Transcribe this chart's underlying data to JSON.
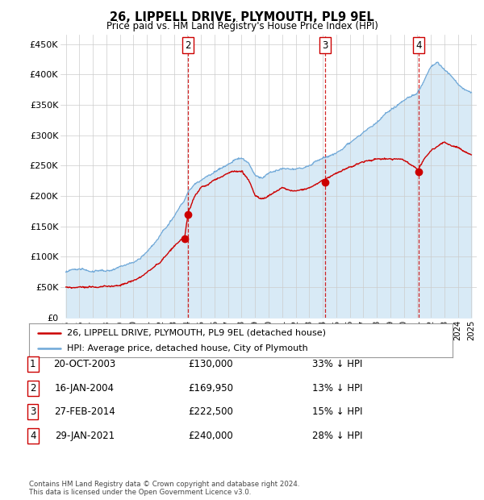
{
  "title": "26, LIPPELL DRIVE, PLYMOUTH, PL9 9EL",
  "subtitle": "Price paid vs. HM Land Registry's House Price Index (HPI)",
  "ylabel_ticks": [
    "£0",
    "£50K",
    "£100K",
    "£150K",
    "£200K",
    "£250K",
    "£300K",
    "£350K",
    "£400K",
    "£450K"
  ],
  "ytick_vals": [
    0,
    50000,
    100000,
    150000,
    200000,
    250000,
    300000,
    350000,
    400000,
    450000
  ],
  "ylim": [
    0,
    465000
  ],
  "xlim_start": 1994.6,
  "xlim_end": 2025.4,
  "hpi_color": "#6fa8d8",
  "hpi_fill_color": "#d8eaf6",
  "price_color": "#cc0000",
  "vline_color": "#cc0000",
  "grid_color": "#cccccc",
  "background_color": "#ffffff",
  "transactions": [
    {
      "id": 1,
      "date": 2003.8,
      "price": 130000,
      "label": "1",
      "show_vline": false
    },
    {
      "id": 2,
      "date": 2004.05,
      "price": 169950,
      "label": "2",
      "show_vline": true
    },
    {
      "id": 3,
      "date": 2014.17,
      "price": 222500,
      "label": "3",
      "show_vline": true
    },
    {
      "id": 4,
      "date": 2021.08,
      "price": 240000,
      "label": "4",
      "show_vline": true
    }
  ],
  "table_rows": [
    {
      "num": "1",
      "date": "20-OCT-2003",
      "price": "£130,000",
      "pct": "33% ↓ HPI"
    },
    {
      "num": "2",
      "date": "16-JAN-2004",
      "price": "£169,950",
      "pct": "13% ↓ HPI"
    },
    {
      "num": "3",
      "date": "27-FEB-2014",
      "price": "£222,500",
      "pct": "15% ↓ HPI"
    },
    {
      "num": "4",
      "date": "29-JAN-2021",
      "price": "£240,000",
      "pct": "28% ↓ HPI"
    }
  ],
  "footnote": "Contains HM Land Registry data © Crown copyright and database right 2024.\nThis data is licensed under the Open Government Licence v3.0.",
  "legend_line1": "26, LIPPELL DRIVE, PLYMOUTH, PL9 9EL (detached house)",
  "legend_line2": "HPI: Average price, detached house, City of Plymouth"
}
